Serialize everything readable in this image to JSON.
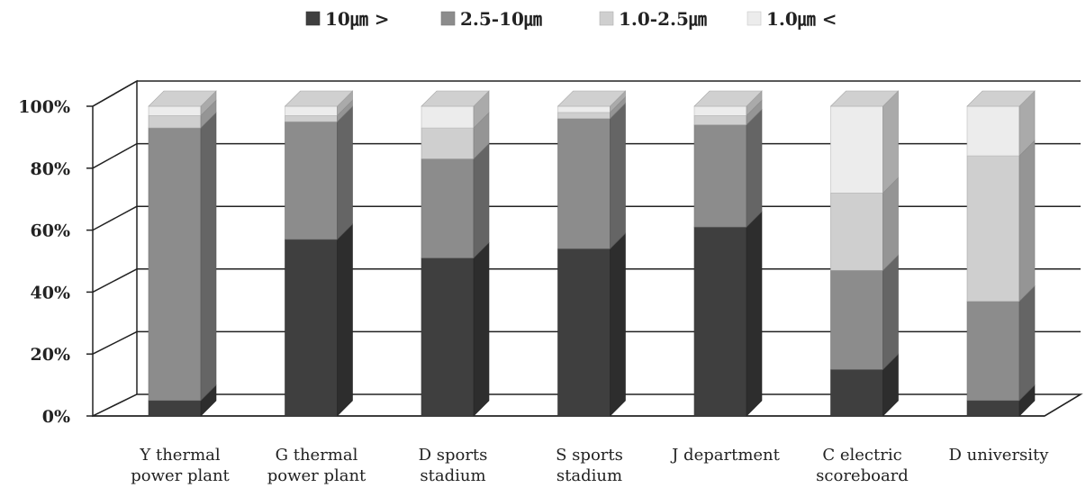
{
  "chart_data": {
    "type": "bar",
    "stacked": true,
    "percent": true,
    "three_d": true,
    "legend_position": "top",
    "grid": true,
    "ylim": [
      0,
      100
    ],
    "y_ticks": [
      "0%",
      "20%",
      "40%",
      "60%",
      "80%",
      "100%"
    ],
    "categories": [
      [
        "Y thermal",
        "power plant"
      ],
      [
        "G thermal",
        "power plant"
      ],
      [
        "D sports",
        "stadium"
      ],
      [
        "S sports",
        "stadium"
      ],
      [
        "J department"
      ],
      [
        "C  electric",
        "scoreboard"
      ],
      [
        "D university"
      ]
    ],
    "series": [
      {
        "name": "10㎛ >",
        "color": "#3f3f3f",
        "values": [
          5,
          57,
          51,
          54,
          61,
          15,
          5
        ]
      },
      {
        "name": "2.5-10㎛",
        "color": "#8c8c8c",
        "values": [
          88,
          38,
          32,
          42,
          33,
          32,
          32
        ]
      },
      {
        "name": "1.0-2.5㎛",
        "color": "#cfcfcf",
        "values": [
          4,
          2,
          10,
          2,
          3,
          25,
          47
        ]
      },
      {
        "name": "1.0㎛ <",
        "color": "#ececec",
        "values": [
          3,
          3,
          7,
          2,
          3,
          28,
          16
        ]
      }
    ]
  }
}
